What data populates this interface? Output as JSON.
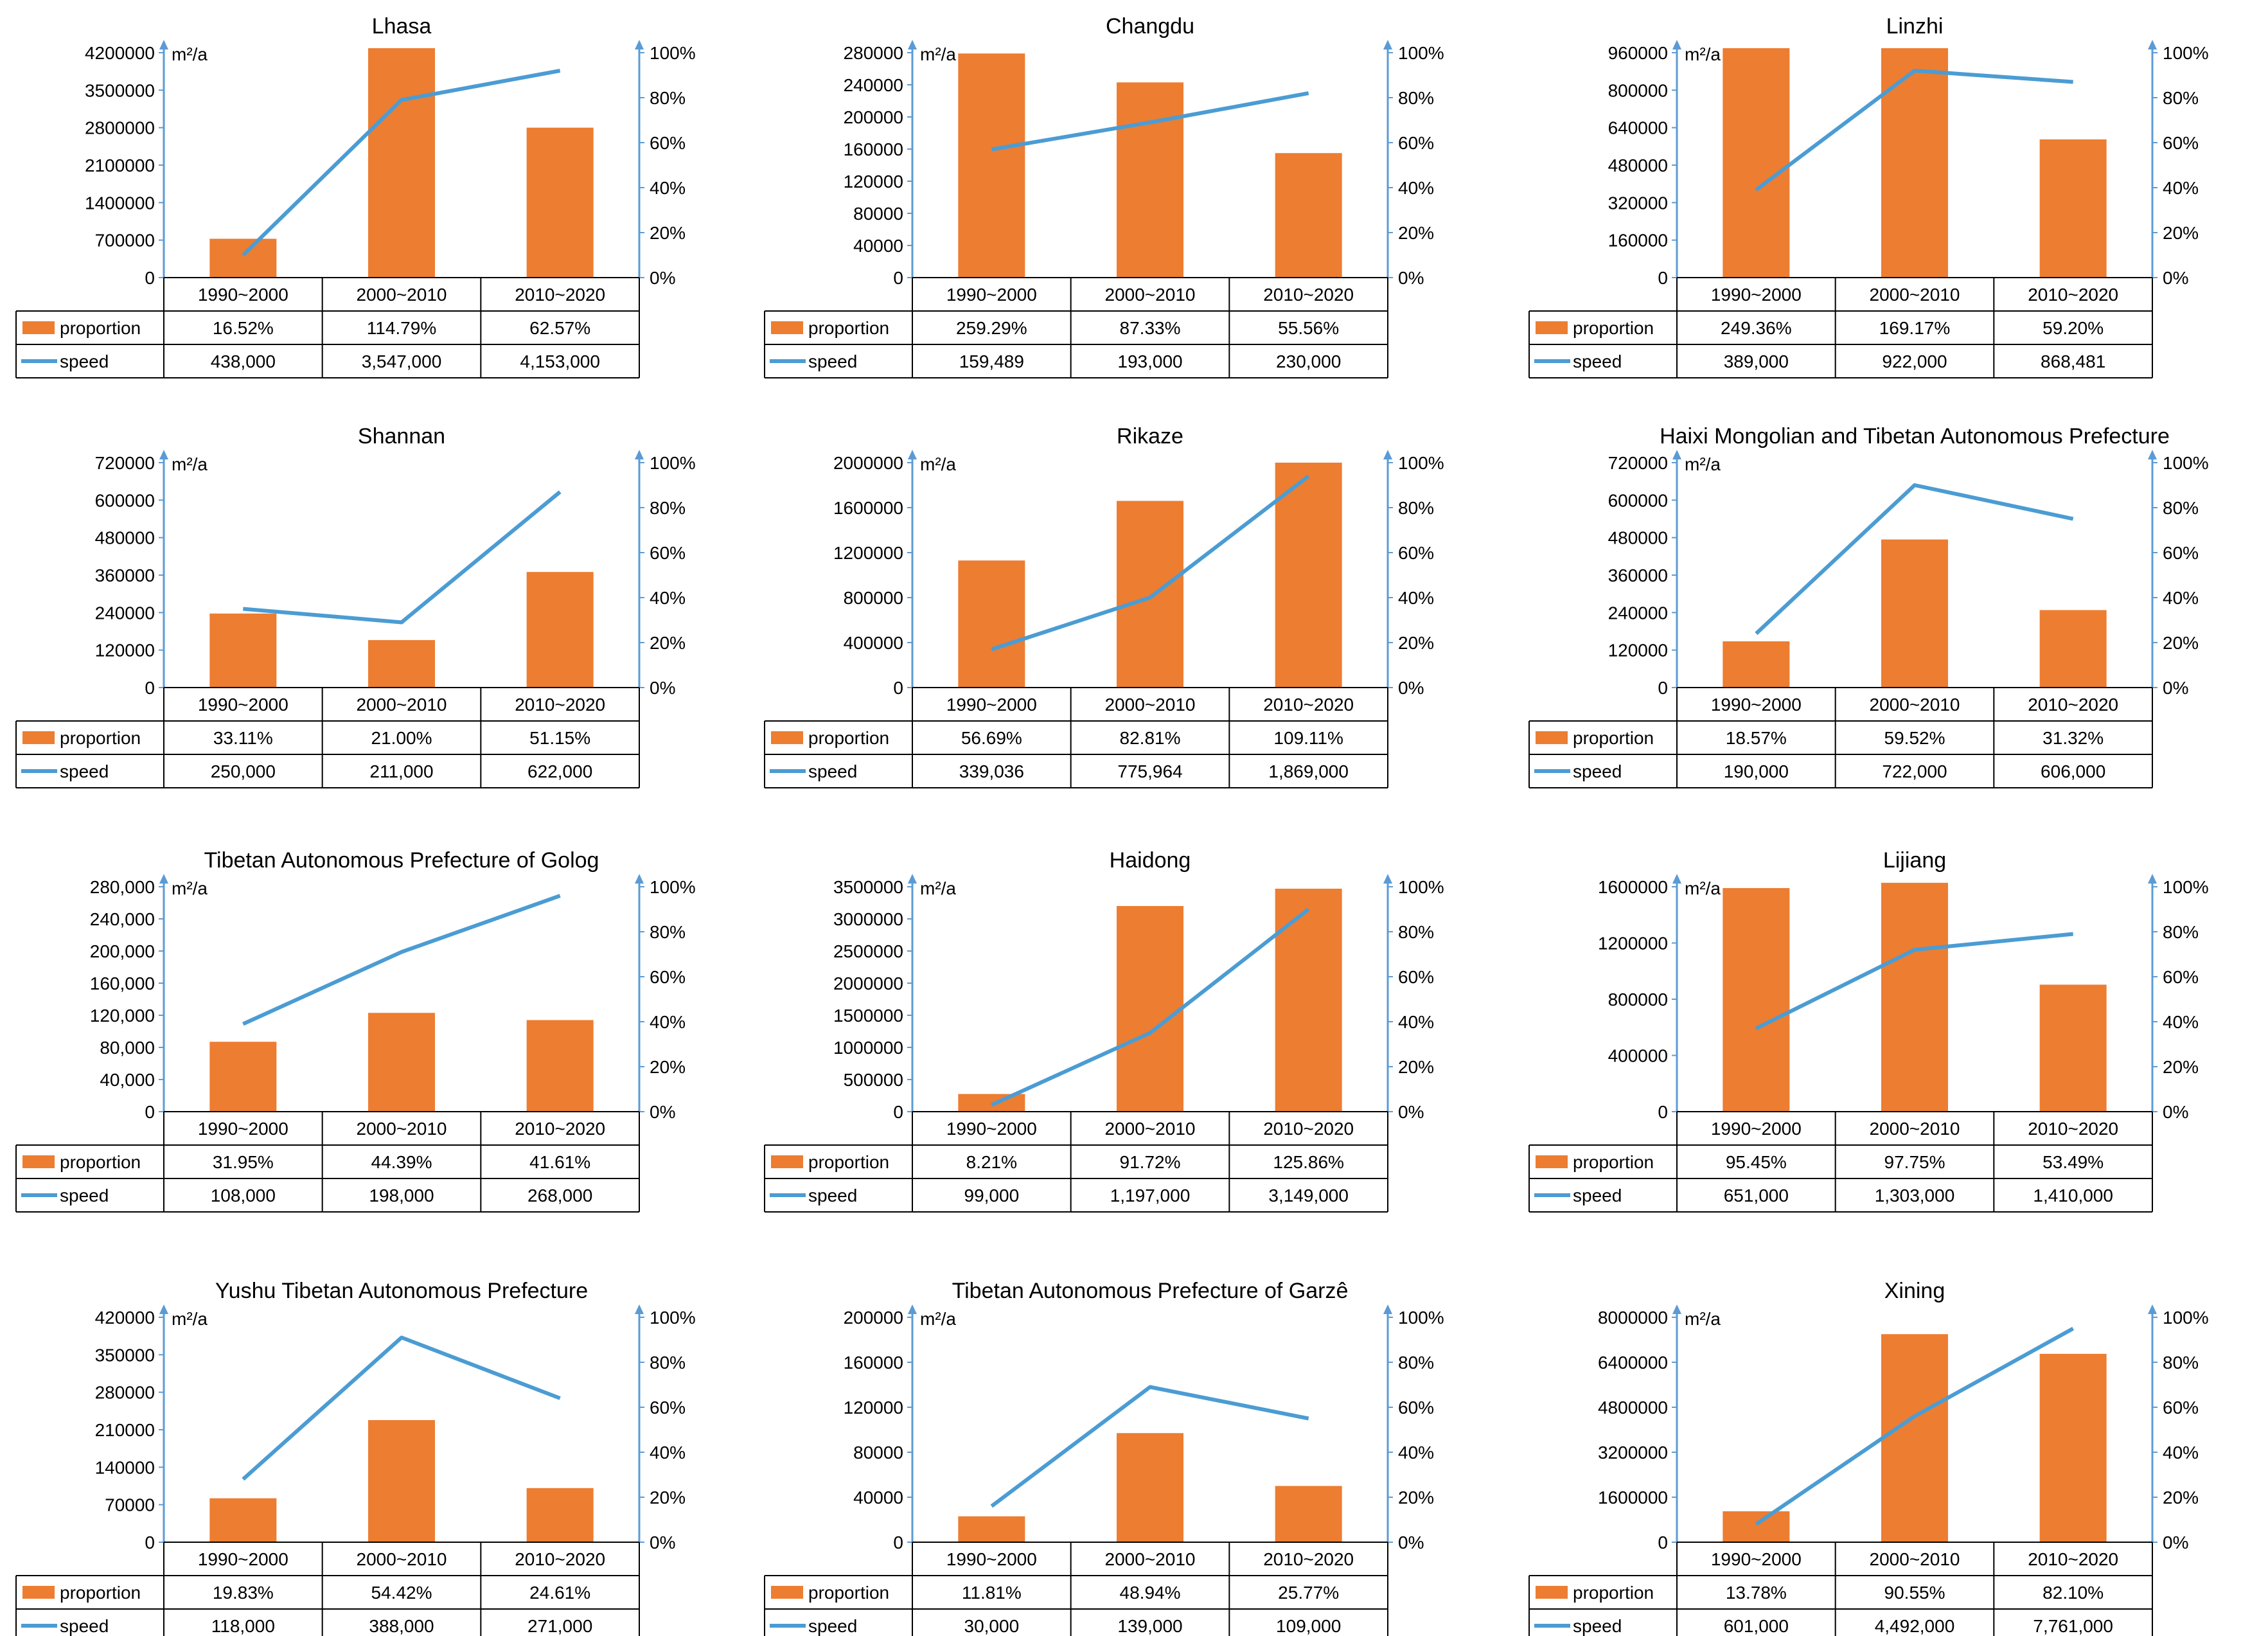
{
  "colors": {
    "bar": "#ED7D31",
    "line": "#4B9CD3",
    "axis": "#5B9BD5",
    "text": "#000000",
    "table_border": "#000000"
  },
  "series_names": [
    "proportion",
    "speed"
  ],
  "chart_data": [
    {
      "type": "bar",
      "title": "Lhasa",
      "unit": "m²/a",
      "categories": [
        "1990~2000",
        "2000~2010",
        "2010~2020"
      ],
      "y_ticks": [
        "0",
        "700000",
        "1400000",
        "2100000",
        "2800000",
        "3500000",
        "4200000"
      ],
      "y2_ticks": [
        "0%",
        "20%",
        "40%",
        "60%",
        "80%",
        "100%"
      ],
      "ylim": [
        0,
        4200000
      ],
      "y2lim": [
        0,
        1
      ],
      "bars": [
        725000,
        4450000,
        2800000
      ],
      "line": [
        0.1,
        0.79,
        0.92
      ],
      "series": [
        {
          "name": "proportion",
          "values": [
            "16.52%",
            "114.79%",
            "62.57%"
          ]
        },
        {
          "name": "speed",
          "values": [
            "438,000",
            "3,547,000",
            "4,153,000"
          ]
        }
      ]
    },
    {
      "type": "bar",
      "title": "Changdu",
      "unit": "m²/a",
      "categories": [
        "1990~2000",
        "2000~2010",
        "2010~2020"
      ],
      "y_ticks": [
        "0",
        "40000",
        "80000",
        "120000",
        "160000",
        "200000",
        "240000",
        "280000"
      ],
      "y2_ticks": [
        "0%",
        "20%",
        "40%",
        "60%",
        "80%",
        "100%"
      ],
      "ylim": [
        0,
        280000
      ],
      "y2lim": [
        0,
        1
      ],
      "bars": [
        279000,
        243000,
        155000
      ],
      "line": [
        0.57,
        0.69,
        0.82
      ],
      "series": [
        {
          "name": "proportion",
          "values": [
            "259.29%",
            "87.33%",
            "55.56%"
          ]
        },
        {
          "name": "speed",
          "values": [
            "159,489",
            "193,000",
            "230,000"
          ]
        }
      ]
    },
    {
      "type": "bar",
      "title": "Linzhi",
      "unit": "m²/a",
      "categories": [
        "1990~2000",
        "2000~2010",
        "2010~2020"
      ],
      "y_ticks": [
        "0",
        "160000",
        "320000",
        "480000",
        "640000",
        "800000",
        "960000"
      ],
      "y2_ticks": [
        "0%",
        "20%",
        "40%",
        "60%",
        "80%",
        "100%"
      ],
      "ylim": [
        0,
        960000
      ],
      "y2lim": [
        0,
        1
      ],
      "bars": [
        990000,
        990000,
        590000
      ],
      "line": [
        0.39,
        0.92,
        0.87
      ],
      "series": [
        {
          "name": "proportion",
          "values": [
            "249.36%",
            "169.17%",
            "59.20%"
          ]
        },
        {
          "name": "speed",
          "values": [
            "389,000",
            "922,000",
            "868,481"
          ]
        }
      ]
    },
    {
      "type": "bar",
      "title": "Shannan",
      "unit": "m²/a",
      "categories": [
        "1990~2000",
        "2000~2010",
        "2010~2020"
      ],
      "y_ticks": [
        "0",
        "120000",
        "240000",
        "360000",
        "480000",
        "600000",
        "720000"
      ],
      "y2_ticks": [
        "0%",
        "20%",
        "40%",
        "60%",
        "80%",
        "100%"
      ],
      "ylim": [
        0,
        720000
      ],
      "y2lim": [
        0,
        1
      ],
      "bars": [
        237000,
        152000,
        370000
      ],
      "line": [
        0.35,
        0.29,
        0.87
      ],
      "series": [
        {
          "name": "proportion",
          "values": [
            "33.11%",
            "21.00%",
            "51.15%"
          ]
        },
        {
          "name": "speed",
          "values": [
            "250,000",
            "211,000",
            "622,000"
          ]
        }
      ]
    },
    {
      "type": "bar",
      "title": "Rikaze",
      "unit": "m²/a",
      "categories": [
        "1990~2000",
        "2000~2010",
        "2010~2020"
      ],
      "y_ticks": [
        "0",
        "400000",
        "800000",
        "1200000",
        "1600000",
        "2000000"
      ],
      "y2_ticks": [
        "0%",
        "20%",
        "40%",
        "60%",
        "80%",
        "100%"
      ],
      "ylim": [
        0,
        2000000
      ],
      "y2lim": [
        0,
        1
      ],
      "bars": [
        1130000,
        1660000,
        2000000
      ],
      "line": [
        0.17,
        0.4,
        0.94
      ],
      "series": [
        {
          "name": "proportion",
          "values": [
            "56.69%",
            "82.81%",
            "109.11%"
          ]
        },
        {
          "name": "speed",
          "values": [
            "339,036",
            "775,964",
            "1,869,000"
          ]
        }
      ]
    },
    {
      "type": "bar",
      "title": "Haixi Mongolian and Tibetan Autonomous Prefecture",
      "unit": "m²/a",
      "categories": [
        "1990~2000",
        "2000~2010",
        "2010~2020"
      ],
      "y_ticks": [
        "0",
        "120000",
        "240000",
        "360000",
        "480000",
        "600000",
        "720000"
      ],
      "y2_ticks": [
        "0%",
        "20%",
        "40%",
        "60%",
        "80%",
        "100%"
      ],
      "ylim": [
        0,
        720000
      ],
      "y2lim": [
        0,
        1
      ],
      "bars": [
        148000,
        474000,
        248000
      ],
      "line": [
        0.24,
        0.9,
        0.75
      ],
      "series": [
        {
          "name": "proportion",
          "values": [
            "18.57%",
            "59.52%",
            "31.32%"
          ]
        },
        {
          "name": "speed",
          "values": [
            "190,000",
            "722,000",
            "606,000"
          ]
        }
      ]
    },
    {
      "type": "bar",
      "title": "Tibetan Autonomous Prefecture of Golog",
      "unit": "m²/a",
      "categories": [
        "1990~2000",
        "2000~2010",
        "2010~2020"
      ],
      "y_ticks": [
        "0",
        "40,000",
        "80,000",
        "120,000",
        "160,000",
        "200,000",
        "240,000",
        "280,000"
      ],
      "y2_ticks": [
        "0%",
        "20%",
        "40%",
        "60%",
        "80%",
        "100%"
      ],
      "ylim": [
        0,
        280000
      ],
      "y2lim": [
        0,
        1
      ],
      "bars": [
        87000,
        123000,
        114000
      ],
      "line": [
        0.39,
        0.71,
        0.96
      ],
      "series": [
        {
          "name": "proportion",
          "values": [
            "31.95%",
            "44.39%",
            "41.61%"
          ]
        },
        {
          "name": "speed",
          "values": [
            "108,000",
            "198,000",
            "268,000"
          ]
        }
      ]
    },
    {
      "type": "bar",
      "title": "Haidong",
      "unit": "m²/a",
      "categories": [
        "1990~2000",
        "2000~2010",
        "2010~2020"
      ],
      "y_ticks": [
        "0",
        "500000",
        "1000000",
        "1500000",
        "2000000",
        "2500000",
        "3000000",
        "3500000"
      ],
      "y2_ticks": [
        "0%",
        "20%",
        "40%",
        "60%",
        "80%",
        "100%"
      ],
      "ylim": [
        0,
        3500000
      ],
      "y2lim": [
        0,
        1
      ],
      "bars": [
        275000,
        3200000,
        3470000
      ],
      "line": [
        0.03,
        0.35,
        0.9
      ],
      "series": [
        {
          "name": "proportion",
          "values": [
            "8.21%",
            "91.72%",
            "125.86%"
          ]
        },
        {
          "name": "speed",
          "values": [
            "99,000",
            "1,197,000",
            "3,149,000"
          ]
        }
      ]
    },
    {
      "type": "bar",
      "title": "Lijiang",
      "unit": "m²/a",
      "categories": [
        "1990~2000",
        "2000~2010",
        "2010~2020"
      ],
      "y_ticks": [
        "0",
        "400000",
        "800000",
        "1200000",
        "1600000"
      ],
      "y2_ticks": [
        "0%",
        "20%",
        "40%",
        "60%",
        "80%",
        "100%"
      ],
      "ylim": [
        0,
        1700000
      ],
      "y2lim": [
        0,
        1
      ],
      "bars": [
        1690000,
        1730000,
        960000
      ],
      "line": [
        0.37,
        0.72,
        0.79
      ],
      "series": [
        {
          "name": "proportion",
          "values": [
            "95.45%",
            "97.75%",
            "53.49%"
          ]
        },
        {
          "name": "speed",
          "values": [
            "651,000",
            "1,303,000",
            "1,410,000"
          ]
        }
      ]
    },
    {
      "type": "bar",
      "title": "Yushu Tibetan Autonomous Prefecture",
      "unit": "m²/a",
      "categories": [
        "1990~2000",
        "2000~2010",
        "2010~2020"
      ],
      "y_ticks": [
        "0",
        "70000",
        "140000",
        "210000",
        "280000",
        "350000",
        "420000"
      ],
      "y2_ticks": [
        "0%",
        "20%",
        "40%",
        "60%",
        "80%",
        "100%"
      ],
      "ylim": [
        0,
        420000
      ],
      "y2lim": [
        0,
        1
      ],
      "bars": [
        82000,
        228000,
        101000
      ],
      "line": [
        0.28,
        0.91,
        0.64
      ],
      "series": [
        {
          "name": "proportion",
          "values": [
            "19.83%",
            "54.42%",
            "24.61%"
          ]
        },
        {
          "name": "speed",
          "values": [
            "118,000",
            "388,000",
            "271,000"
          ]
        }
      ]
    },
    {
      "type": "bar",
      "title": "Tibetan Autonomous Prefecture of Garzê",
      "unit": "m²/a",
      "categories": [
        "1990~2000",
        "2000~2010",
        "2010~2020"
      ],
      "y_ticks": [
        "0",
        "40000",
        "80000",
        "120000",
        "160000",
        "200000"
      ],
      "y2_ticks": [
        "0%",
        "20%",
        "40%",
        "60%",
        "80%",
        "100%"
      ],
      "ylim": [
        0,
        200000
      ],
      "y2lim": [
        0,
        1
      ],
      "bars": [
        23000,
        97000,
        50000
      ],
      "line": [
        0.16,
        0.69,
        0.55
      ],
      "series": [
        {
          "name": "proportion",
          "values": [
            "11.81%",
            "48.94%",
            "25.77%"
          ]
        },
        {
          "name": "speed",
          "values": [
            "30,000",
            "139,000",
            "109,000"
          ]
        }
      ]
    },
    {
      "type": "bar",
      "title": "Xining",
      "unit": "m²/a",
      "categories": [
        "1990~2000",
        "2000~2010",
        "2010~2020"
      ],
      "y_ticks": [
        "0",
        "1600000",
        "3200000",
        "4800000",
        "6400000",
        "8000000"
      ],
      "y2_ticks": [
        "0%",
        "20%",
        "40%",
        "60%",
        "80%",
        "100%"
      ],
      "ylim": [
        0,
        8000000
      ],
      "y2lim": [
        0,
        1
      ],
      "bars": [
        1100000,
        7400000,
        6700000
      ],
      "line": [
        0.08,
        0.56,
        0.95
      ],
      "series": [
        {
          "name": "proportion",
          "values": [
            "13.78%",
            "90.55%",
            "82.10%"
          ]
        },
        {
          "name": "speed",
          "values": [
            "601,000",
            "4,492,000",
            "7,761,000"
          ]
        }
      ]
    }
  ]
}
